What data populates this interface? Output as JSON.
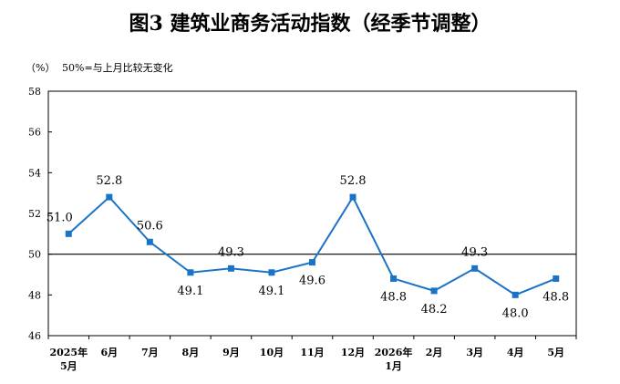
{
  "title": "图3  建筑业商务活动指数（经季节调整）",
  "unit_label": "（%）",
  "note": "50%=与上月比较无变化",
  "chart_data": {
    "type": "line",
    "title": "图3  建筑业商务活动指数（经季节调整）",
    "ylabel": "（%）",
    "xlabel": "",
    "categories": [
      [
        "2025年",
        "5月"
      ],
      [
        "6月"
      ],
      [
        "7月"
      ],
      [
        "8月"
      ],
      [
        "9月"
      ],
      [
        "10月"
      ],
      [
        "11月"
      ],
      [
        "12月"
      ],
      [
        "2026年",
        "1月"
      ],
      [
        "2月"
      ],
      [
        "3月"
      ],
      [
        "4月"
      ],
      [
        "5月"
      ]
    ],
    "values": [
      51.0,
      52.8,
      50.6,
      49.1,
      49.3,
      49.1,
      49.6,
      52.8,
      48.8,
      48.2,
      49.3,
      48.0,
      48.8
    ],
    "data_labels": [
      "51.0",
      "52.8",
      "50.6",
      "49.1",
      "49.3",
      "49.1",
      "49.6",
      "52.8",
      "48.8",
      "48.2",
      "49.3",
      "48.0",
      "48.8"
    ],
    "yticks": [
      "46",
      "48",
      "50",
      "52",
      "54",
      "56",
      "58"
    ],
    "ylim": [
      46,
      58
    ],
    "reference_line": 50,
    "grid": false,
    "line_color": "#1a73c7",
    "marker_color": "#1a73c7"
  }
}
